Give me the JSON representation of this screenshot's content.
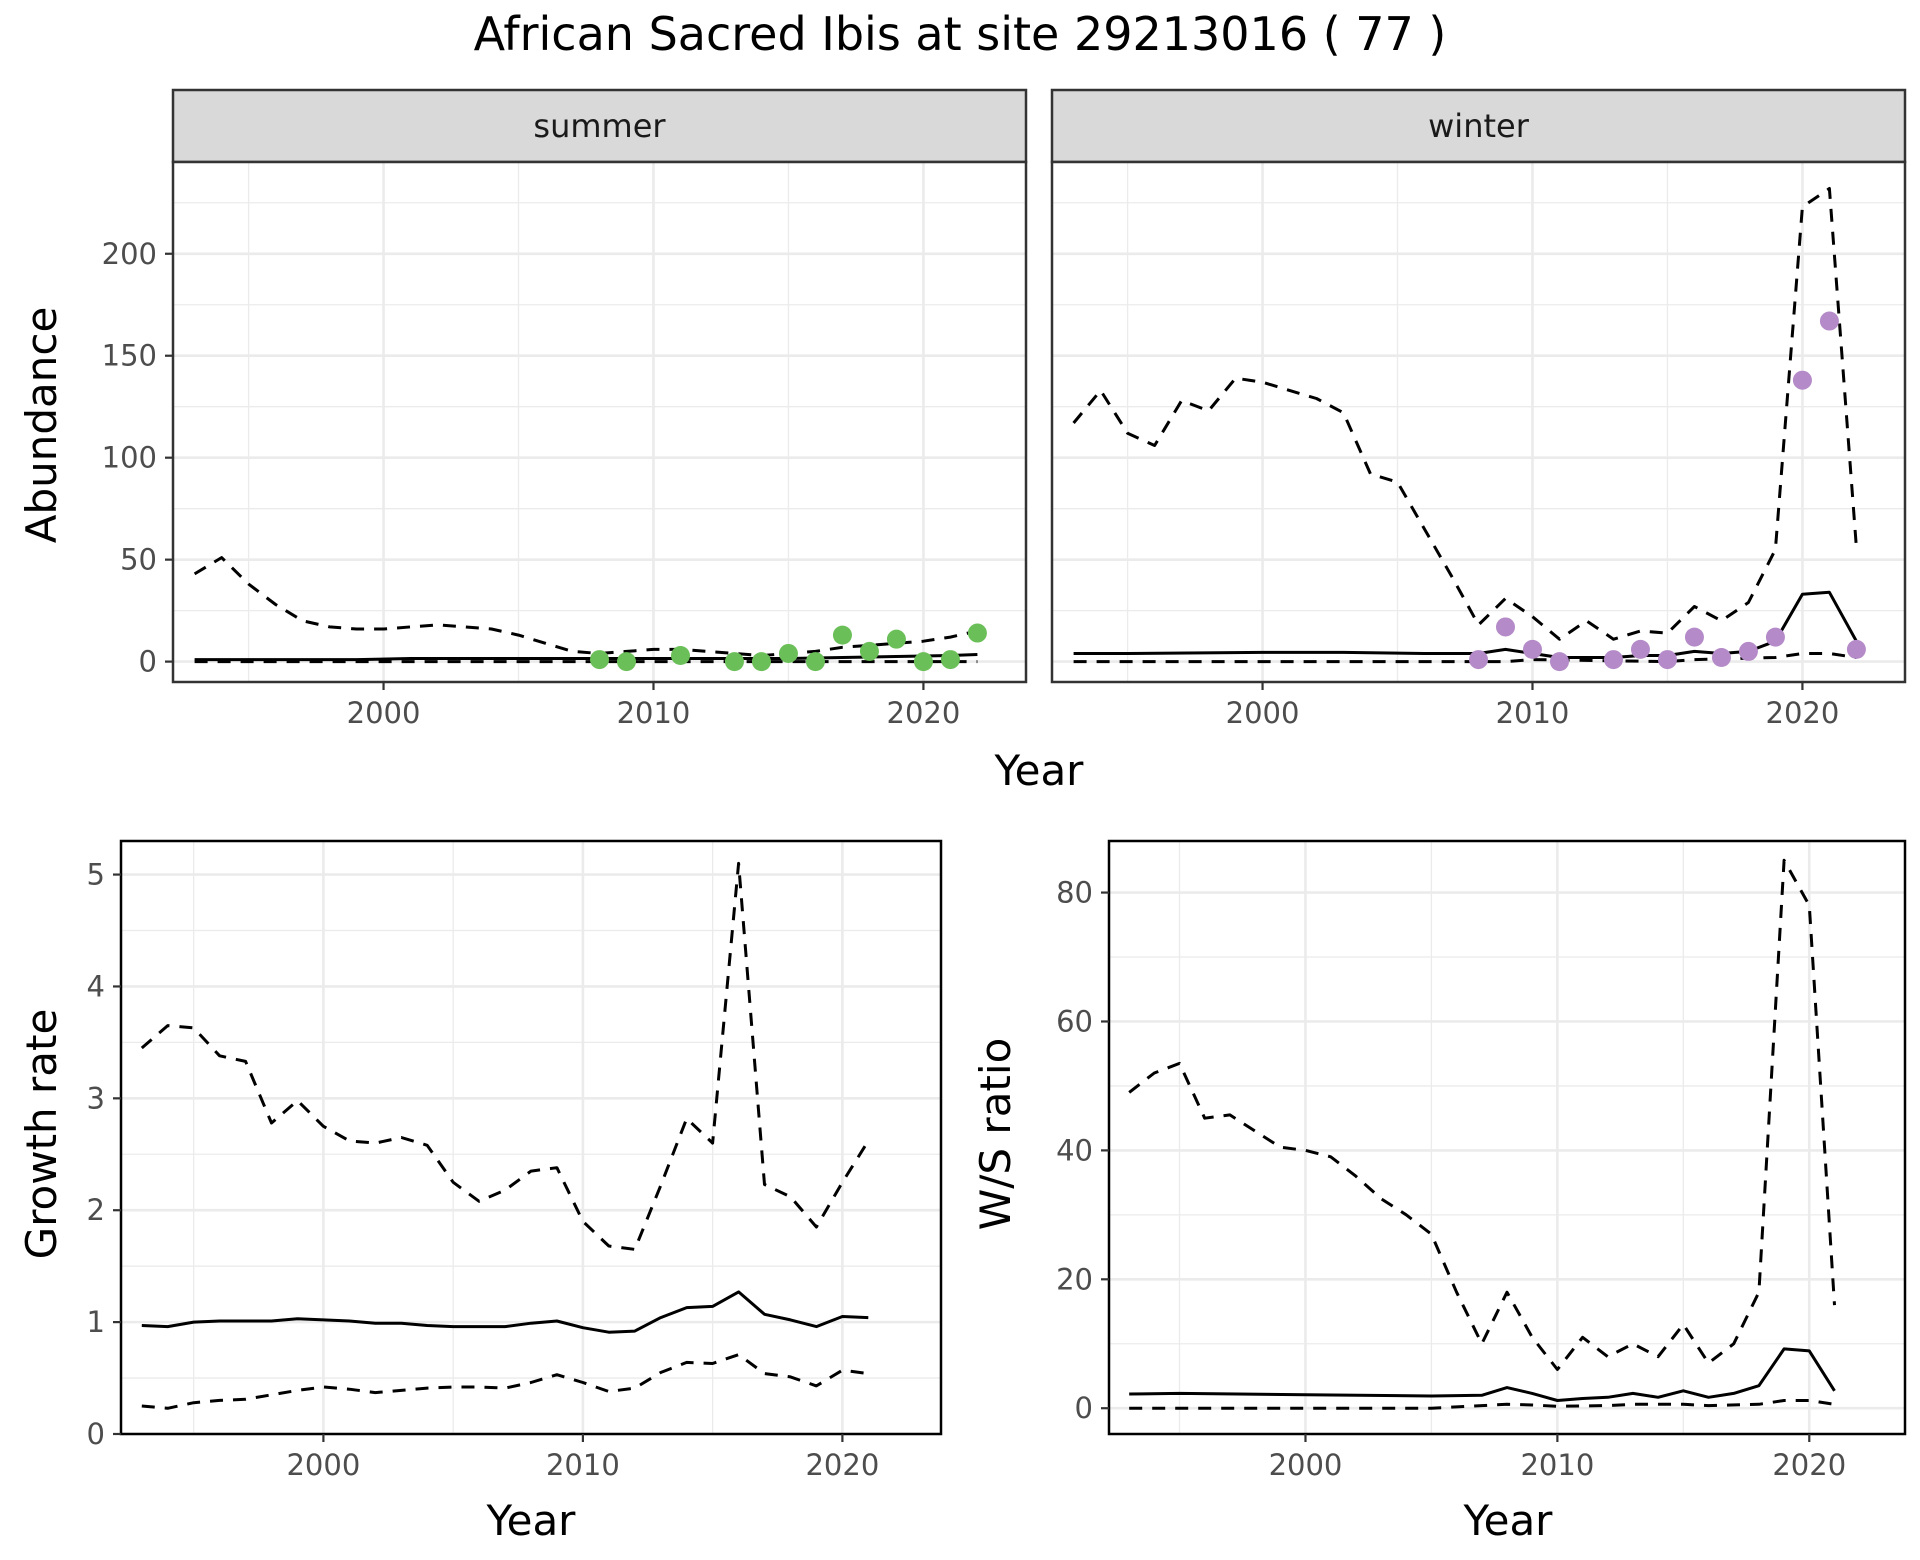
{
  "title": "African Sacred Ibis at site 29213016 ( 77 )",
  "colors": {
    "summer_points": "#6bbf59",
    "winter_points": "#b48ac8",
    "lines": "#000000",
    "strip_fill": "#d9d9d9",
    "grid": "#ebebeb"
  },
  "chart_data": [
    {
      "type": "line",
      "panel": "summer",
      "xlabel": "Year",
      "ylabel": "Abundance",
      "xlim": [
        1992.2,
        2023.8
      ],
      "ylim": [
        -10,
        245
      ],
      "x_ticks": [
        2000,
        2010,
        2020
      ],
      "y_ticks": [
        0,
        50,
        100,
        150,
        200
      ],
      "grid": true,
      "series": [
        {
          "role": "estimate",
          "style": "solid",
          "x": [
            1993,
            1995,
            1997,
            1999,
            2001,
            2003,
            2005,
            2007,
            2009,
            2011,
            2013,
            2015,
            2017,
            2019,
            2021,
            2022
          ],
          "y": [
            1,
            1,
            1,
            1,
            1.5,
            1.5,
            1.5,
            1.5,
            1.5,
            1.5,
            1.5,
            1.5,
            2,
            2.5,
            3,
            3.5
          ]
        },
        {
          "role": "upper",
          "style": "dashed",
          "x": [
            1993,
            1994,
            1995,
            1996,
            1997,
            1998,
            1999,
            2000,
            2001,
            2002,
            2003,
            2004,
            2005,
            2006,
            2007,
            2008,
            2009,
            2010,
            2011,
            2012,
            2013,
            2014,
            2015,
            2016,
            2017,
            2018,
            2019,
            2020,
            2021,
            2022
          ],
          "y": [
            43,
            51,
            38,
            28,
            20,
            17,
            16,
            16,
            17,
            18,
            17,
            16,
            13,
            9,
            5,
            4,
            5,
            6,
            6,
            5,
            4,
            3,
            4,
            5,
            7,
            8,
            9,
            10,
            12,
            15
          ]
        },
        {
          "role": "lower",
          "style": "dashed",
          "x": [
            1993,
            2022
          ],
          "y": [
            0,
            0
          ]
        }
      ],
      "points": {
        "x": [
          2008,
          2009,
          2011,
          2013,
          2014,
          2015,
          2016,
          2017,
          2018,
          2019,
          2020,
          2021,
          2022
        ],
        "y": [
          1,
          0,
          3,
          0,
          0,
          4,
          0,
          13,
          5,
          11,
          0,
          1,
          14
        ]
      }
    },
    {
      "type": "line",
      "panel": "winter",
      "xlabel": "Year",
      "ylabel": "Abundance",
      "xlim": [
        1992.2,
        2023.8
      ],
      "ylim": [
        -10,
        245
      ],
      "x_ticks": [
        2000,
        2010,
        2020
      ],
      "y_ticks": [
        0,
        50,
        100,
        150,
        200
      ],
      "grid": true,
      "series": [
        {
          "role": "estimate",
          "style": "solid",
          "x": [
            1993,
            1995,
            2000,
            2003,
            2006,
            2007,
            2008,
            2009,
            2010,
            2011,
            2012,
            2013,
            2014,
            2015,
            2016,
            2017,
            2018,
            2019,
            2020,
            2021,
            2022
          ],
          "y": [
            4,
            4,
            4.5,
            4.5,
            4,
            4,
            4,
            6,
            4,
            2,
            2,
            2,
            3,
            3,
            5,
            4,
            5,
            10,
            33,
            34,
            10
          ]
        },
        {
          "role": "upper",
          "style": "dashed",
          "x": [
            1993,
            1994,
            1995,
            1996,
            1997,
            1998,
            1999,
            2000,
            2001,
            2002,
            2003,
            2004,
            2005,
            2006,
            2007,
            2008,
            2009,
            2010,
            2011,
            2012,
            2013,
            2014,
            2015,
            2016,
            2017,
            2018,
            2019,
            2020,
            2021,
            2022
          ],
          "y": [
            117,
            133,
            112,
            106,
            128,
            123,
            139,
            137,
            133,
            129,
            122,
            92,
            88,
            65,
            42,
            18,
            31,
            22,
            11,
            20,
            11,
            15,
            14,
            27,
            20,
            29,
            55,
            223,
            232,
            56
          ]
        },
        {
          "role": "lower",
          "style": "dashed",
          "x": [
            1993,
            2009,
            2010,
            2015,
            2016,
            2019,
            2020,
            2021,
            2022
          ],
          "y": [
            0,
            0,
            1,
            0,
            1,
            2,
            4,
            4,
            2
          ]
        }
      ],
      "points": {
        "x": [
          2008,
          2009,
          2010,
          2011,
          2013,
          2014,
          2015,
          2016,
          2017,
          2018,
          2019,
          2020,
          2021,
          2022
        ],
        "y": [
          1,
          17,
          6,
          0,
          1,
          6,
          1,
          12,
          2,
          5,
          12,
          138,
          167,
          6
        ]
      }
    },
    {
      "type": "line",
      "panel": "growth",
      "xlabel": "Year",
      "ylabel": "Growth rate",
      "xlim": [
        1992.2,
        2023.8
      ],
      "ylim": [
        0,
        5.3
      ],
      "x_ticks": [
        2000,
        2010,
        2020
      ],
      "y_ticks": [
        0,
        1,
        2,
        3,
        4,
        5
      ],
      "grid": true,
      "series": [
        {
          "role": "estimate",
          "style": "solid",
          "x": [
            1993,
            1994,
            1995,
            1996,
            1997,
            1998,
            1999,
            2000,
            2001,
            2002,
            2003,
            2004,
            2005,
            2006,
            2007,
            2008,
            2009,
            2010,
            2011,
            2012,
            2013,
            2014,
            2015,
            2016,
            2017,
            2018,
            2019,
            2020,
            2021
          ],
          "y": [
            0.97,
            0.96,
            1.0,
            1.01,
            1.01,
            1.01,
            1.03,
            1.02,
            1.01,
            0.99,
            0.99,
            0.97,
            0.96,
            0.96,
            0.96,
            0.99,
            1.01,
            0.95,
            0.91,
            0.92,
            1.04,
            1.13,
            1.14,
            1.27,
            1.07,
            1.02,
            0.96,
            1.05,
            1.04
          ]
        },
        {
          "role": "upper",
          "style": "dashed",
          "x": [
            1993,
            1994,
            1995,
            1996,
            1997,
            1998,
            1999,
            2000,
            2001,
            2002,
            2003,
            2004,
            2005,
            2006,
            2007,
            2008,
            2009,
            2010,
            2011,
            2012,
            2013,
            2014,
            2015,
            2016,
            2017,
            2018,
            2019,
            2020,
            2021
          ],
          "y": [
            3.45,
            3.65,
            3.63,
            3.38,
            3.33,
            2.78,
            2.98,
            2.75,
            2.62,
            2.6,
            2.65,
            2.58,
            2.25,
            2.08,
            2.18,
            2.35,
            2.38,
            1.9,
            1.68,
            1.65,
            2.22,
            2.82,
            2.6,
            5.1,
            2.23,
            2.12,
            1.85,
            2.25,
            2.62
          ]
        },
        {
          "role": "lower",
          "style": "dashed",
          "x": [
            1993,
            1994,
            1995,
            1996,
            1997,
            1998,
            1999,
            2000,
            2001,
            2002,
            2003,
            2004,
            2005,
            2006,
            2007,
            2008,
            2009,
            2010,
            2011,
            2012,
            2013,
            2014,
            2015,
            2016,
            2017,
            2018,
            2019,
            2020,
            2021
          ],
          "y": [
            0.25,
            0.23,
            0.28,
            0.3,
            0.31,
            0.35,
            0.39,
            0.42,
            0.4,
            0.37,
            0.39,
            0.41,
            0.42,
            0.42,
            0.41,
            0.46,
            0.53,
            0.46,
            0.38,
            0.41,
            0.55,
            0.64,
            0.63,
            0.71,
            0.54,
            0.51,
            0.43,
            0.57,
            0.54
          ]
        }
      ]
    },
    {
      "type": "line",
      "panel": "ratio",
      "xlabel": "Year",
      "ylabel": "W/S ratio",
      "xlim": [
        1992.2,
        2023.8
      ],
      "ylim": [
        -4,
        88
      ],
      "x_ticks": [
        2000,
        2010,
        2020
      ],
      "y_ticks": [
        0,
        20,
        40,
        60,
        80
      ],
      "grid": true,
      "series": [
        {
          "role": "estimate",
          "style": "solid",
          "x": [
            1993,
            1995,
            2000,
            2005,
            2007,
            2008,
            2009,
            2010,
            2011,
            2012,
            2013,
            2014,
            2015,
            2016,
            2017,
            2018,
            2019,
            2020,
            2021
          ],
          "y": [
            2.2,
            2.3,
            2.1,
            1.9,
            2,
            3.2,
            2.3,
            1.2,
            1.5,
            1.7,
            2.3,
            1.7,
            2.7,
            1.7,
            2.3,
            3.5,
            9.2,
            8.9,
            2.7
          ]
        },
        {
          "role": "upper",
          "style": "dashed",
          "x": [
            1993,
            1994,
            1995,
            1996,
            1997,
            1998,
            1999,
            2000,
            2001,
            2002,
            2003,
            2004,
            2005,
            2006,
            2007,
            2008,
            2009,
            2010,
            2011,
            2012,
            2013,
            2014,
            2015,
            2016,
            2017,
            2018,
            2019,
            2020,
            2021
          ],
          "y": [
            49,
            52,
            53.5,
            45,
            45.5,
            43,
            40.5,
            40,
            39,
            36,
            32.5,
            30,
            27,
            18,
            10,
            18,
            11,
            6,
            11,
            8,
            10,
            8,
            13,
            7,
            10,
            18,
            85,
            78,
            16
          ]
        },
        {
          "role": "lower",
          "style": "dashed",
          "x": [
            1993,
            2005,
            2006,
            2008,
            2009,
            2010,
            2012,
            2013,
            2015,
            2016,
            2018,
            2019,
            2020,
            2021
          ],
          "y": [
            0,
            0,
            0.2,
            0.6,
            0.5,
            0.3,
            0.4,
            0.6,
            0.6,
            0.4,
            0.6,
            1.2,
            1.2,
            0.6
          ]
        }
      ]
    }
  ],
  "facets": {
    "summer_label": "summer",
    "winter_label": "winter"
  }
}
